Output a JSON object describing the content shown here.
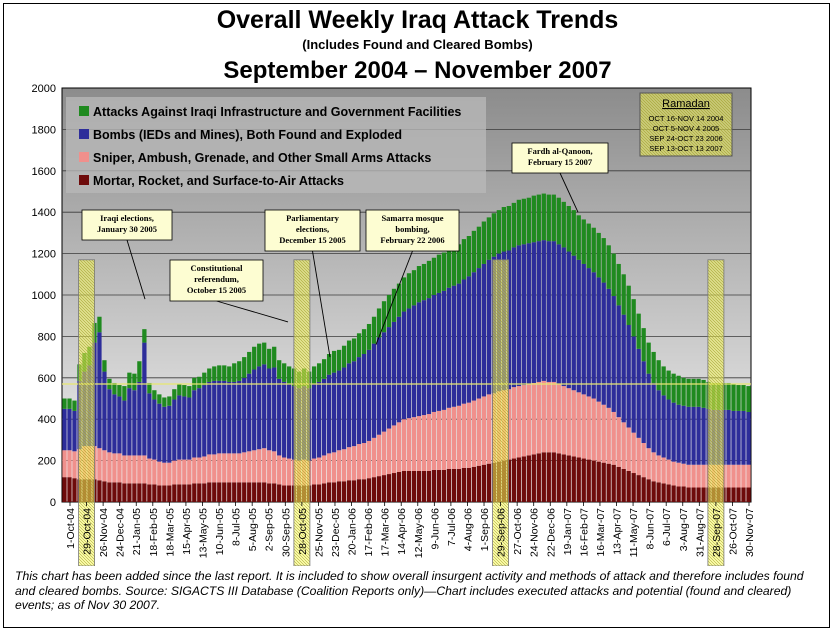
{
  "title": "Overall Weekly Iraq Attack Trends",
  "subtitle": "(Includes Found and Cleared Bombs)",
  "period": "September 2004 – November 2007",
  "footnote": "This chart has been added since the last report.  It is included to show overall insurgent activity and methods of attack and therefore includes found and cleared bombs.  Source:  SIGACTS III Database (Coalition Reports only)—Chart includes executed attacks and potential (found and cleared) events; as of Nov 30 2007.",
  "colors": {
    "infrastructure": "#1f8a1f",
    "bombs": "#2d2d9a",
    "small_arms": "#f0908c",
    "mortar": "#6e0b0b",
    "highlight": "#f2f25a",
    "background_top": "#8c8c8c",
    "background_bottom": "#f4f4f4",
    "reference_line": "#e8e870"
  },
  "chart_data": {
    "type": "bar",
    "stacked": true,
    "ylim": [
      0,
      2000
    ],
    "yticks": [
      "0",
      "200",
      "400",
      "600",
      "800",
      "1000",
      "1200",
      "1400",
      "1600",
      "1800",
      "2000"
    ],
    "xtick_labels": [
      "1-Oct-04",
      "29-Oct-04",
      "26-Nov-04",
      "24-Dec-04",
      "21-Jan-05",
      "18-Feb-05",
      "18-Mar-05",
      "15-Apr-05",
      "13-May-05",
      "10-Jun-05",
      "8-Jul-05",
      "5-Aug-05",
      "2-Sep-05",
      "30-Sep-05",
      "28-Oct-05",
      "25-Nov-05",
      "23-Dec-05",
      "20-Jan-06",
      "17-Feb-06",
      "17-Mar-06",
      "14-Apr-06",
      "12-May-06",
      "9-Jun-06",
      "7-Jul-06",
      "4-Aug-06",
      "1-Sep-06",
      "29-Sep-06",
      "27-Oct-06",
      "24-Nov-06",
      "22-Dec-06",
      "19-Jan-07",
      "16-Feb-07",
      "16-Mar-07",
      "13-Apr-07",
      "11-May-07",
      "8-Jun-07",
      "6-Jul-07",
      "3-Aug-07",
      "31-Aug-07",
      "28-Sep-07",
      "26-Oct-07",
      "30-Nov-07"
    ],
    "highlighted_ticks": [
      "29-Oct-04",
      "28-Oct-05",
      "29-Sep-06",
      "28-Sep-07"
    ],
    "reference_line": 570,
    "series": [
      {
        "name": "Attacks Against Iraqi Infrastructure and Government Facilities",
        "values": [
          50,
          50,
          50,
          80,
          90,
          90,
          95,
          75,
          55,
          50,
          55,
          55,
          70,
          75,
          80,
          100,
          65,
          50,
          45,
          45,
          45,
          45,
          50,
          55,
          55,
          55,
          60,
          55,
          60,
          65,
          70,
          75,
          75,
          75,
          90,
          95,
          100,
          105,
          110,
          110,
          105,
          95,
          100,
          90,
          90,
          85,
          85,
          80,
          85,
          80,
          85,
          90,
          95,
          100,
          105,
          100,
          105,
          110,
          110,
          115,
          120,
          125,
          130,
          140,
          150,
          155,
          160,
          160,
          165,
          170,
          170,
          175,
          175,
          180,
          180,
          185,
          185,
          190,
          190,
          190,
          195,
          195,
          200,
          200,
          205,
          205,
          210,
          210,
          215,
          215,
          215,
          220,
          220,
          220,
          225,
          225,
          225,
          225,
          225,
          225,
          220,
          220,
          220,
          215,
          215,
          215,
          215,
          215,
          215,
          210,
          205,
          200,
          195,
          190,
          180,
          170,
          160,
          150,
          150,
          145,
          140,
          140,
          140,
          140,
          135,
          135,
          135,
          135,
          135,
          130,
          130,
          130,
          130,
          130,
          130,
          125,
          125,
          125
        ]
      },
      {
        "name": "Bombs (IEDs and Mines), Both Found and Exploded",
        "values": [
          200,
          200,
          195,
          330,
          360,
          390,
          500,
          560,
          380,
          305,
          285,
          275,
          265,
          325,
          315,
          355,
          545,
          315,
          290,
          280,
          270,
          275,
          295,
          310,
          305,
          300,
          325,
          335,
          345,
          350,
          355,
          350,
          350,
          345,
          345,
          350,
          360,
          375,
          390,
          400,
          405,
          395,
          405,
          370,
          365,
          360,
          355,
          350,
          355,
          350,
          360,
          365,
          370,
          380,
          385,
          385,
          395,
          405,
          410,
          420,
          430,
          440,
          455,
          470,
          480,
          490,
          500,
          510,
          520,
          530,
          540,
          550,
          555,
          560,
          565,
          570,
          575,
          580,
          585,
          590,
          600,
          610,
          620,
          630,
          640,
          650,
          660,
          665,
          670,
          670,
          675,
          680,
          680,
          680,
          680,
          680,
          680,
          680,
          680,
          675,
          670,
          660,
          650,
          640,
          630,
          620,
          610,
          600,
          590,
          575,
          560,
          540,
          520,
          495,
          465,
          430,
          395,
          360,
          335,
          315,
          300,
          290,
          285,
          280,
          280,
          280,
          280,
          280,
          275,
          270,
          265,
          265,
          265,
          265,
          260,
          260,
          260,
          255
        ]
      },
      {
        "name": "Sniper, Ambush, Grenade, and Other Small Arms Attacks",
        "values": [
          130,
          130,
          130,
          145,
          160,
          160,
          160,
          155,
          150,
          145,
          140,
          140,
          135,
          135,
          135,
          135,
          135,
          125,
          120,
          115,
          110,
          110,
          115,
          120,
          120,
          120,
          125,
          125,
          130,
          135,
          135,
          140,
          140,
          140,
          140,
          140,
          145,
          150,
          155,
          160,
          165,
          160,
          155,
          140,
          135,
          130,
          125,
          120,
          125,
          120,
          125,
          130,
          135,
          140,
          145,
          150,
          155,
          160,
          165,
          170,
          175,
          180,
          190,
          200,
          210,
          220,
          230,
          240,
          250,
          255,
          260,
          265,
          270,
          275,
          280,
          285,
          290,
          295,
          300,
          305,
          310,
          315,
          320,
          325,
          330,
          335,
          335,
          340,
          340,
          340,
          345,
          345,
          345,
          345,
          345,
          345,
          345,
          340,
          340,
          335,
          330,
          325,
          320,
          315,
          310,
          305,
          300,
          290,
          280,
          270,
          255,
          240,
          225,
          210,
          195,
          180,
          165,
          150,
          140,
          130,
          125,
          120,
          115,
          115,
          110,
          110,
          110,
          110,
          110,
          110,
          110,
          110,
          110,
          110,
          110,
          110,
          110,
          110
        ]
      },
      {
        "name": "Mortar, Rocket, and Surface-to-Air Attacks",
        "values": [
          120,
          120,
          115,
          110,
          110,
          110,
          110,
          105,
          100,
          95,
          95,
          95,
          90,
          90,
          90,
          90,
          90,
          85,
          85,
          80,
          80,
          80,
          85,
          85,
          85,
          85,
          90,
          90,
          90,
          95,
          95,
          95,
          95,
          95,
          95,
          95,
          95,
          95,
          95,
          95,
          95,
          90,
          90,
          85,
          80,
          80,
          80,
          80,
          80,
          80,
          85,
          85,
          90,
          95,
          95,
          100,
          100,
          105,
          105,
          110,
          110,
          115,
          120,
          125,
          130,
          135,
          140,
          145,
          150,
          150,
          150,
          150,
          150,
          150,
          155,
          155,
          155,
          160,
          160,
          160,
          165,
          165,
          170,
          175,
          180,
          185,
          190,
          195,
          200,
          205,
          210,
          215,
          220,
          225,
          230,
          235,
          240,
          240,
          240,
          235,
          230,
          225,
          220,
          215,
          210,
          205,
          200,
          195,
          190,
          185,
          180,
          170,
          160,
          150,
          140,
          130,
          120,
          110,
          100,
          95,
          90,
          85,
          80,
          75,
          75,
          70,
          70,
          70,
          70,
          70,
          70,
          70,
          70,
          70,
          70,
          70,
          70,
          70
        ]
      }
    ],
    "legend": {
      "placement": "top-left",
      "entries": [
        {
          "label": "Attacks Against Iraqi Infrastructure and Government Facilities",
          "color": "#1f8a1f"
        },
        {
          "label": "Bombs (IEDs and Mines), Both Found and Exploded",
          "color": "#2d2d9a"
        },
        {
          "label": "Sniper, Ambush, Grenade, and Other Small Arms Attacks",
          "color": "#f0908c"
        },
        {
          "label": "Mortar, Rocket, and Surface-to-Air Attacks",
          "color": "#6e0b0b"
        }
      ]
    },
    "ramadan_box": {
      "title": "Ramadan",
      "lines": [
        "OCT 16-NOV 14 2004",
        "OCT 5-NOV 4 2005",
        "SEP 24-OCT 23 2006",
        "SEP 13-OCT 13 2007"
      ]
    },
    "annotations": [
      {
        "lines": [
          "Iraqi elections,",
          "January 30 2005"
        ],
        "date": "30-Jan-05",
        "value": 980
      },
      {
        "lines": [
          "Constitutional",
          "referendum,",
          "October 15 2005"
        ],
        "date": "15-Oct-05",
        "value": 870
      },
      {
        "lines": [
          "Parliamentary",
          "elections,",
          "December 15 2005"
        ],
        "date": "15-Dec-05",
        "value": 700
      },
      {
        "lines": [
          "Samarra mosque",
          "bombing,",
          "February 22 2006"
        ],
        "date": "22-Feb-06",
        "value": 760
      },
      {
        "lines": [
          "Fardh al-Qanoon,",
          "February 15 2007"
        ],
        "date": "15-Feb-07",
        "value": 1400
      }
    ]
  }
}
